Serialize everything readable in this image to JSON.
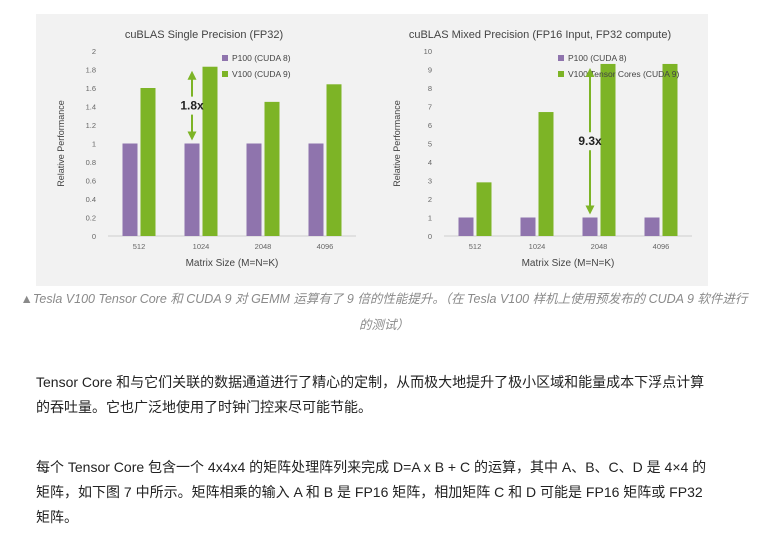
{
  "chart_data": [
    {
      "type": "bar",
      "title": "cuBLAS Single Precision (FP32)",
      "xlabel": "Matrix Size (M=N=K)",
      "ylabel": "Relative Performance",
      "categories": [
        "512",
        "1024",
        "2048",
        "4096"
      ],
      "series": [
        {
          "name": "P100 (CUDA 8)",
          "values": [
            1,
            1,
            1,
            1
          ],
          "color": "#8f74ad"
        },
        {
          "name": "V100 (CUDA 9)",
          "values": [
            1.6,
            1.83,
            1.45,
            1.64
          ],
          "color": "#7db426"
        }
      ],
      "ylim": [
        0,
        2
      ],
      "yticks": [
        "0",
        "0.2",
        "0.4",
        "0.6",
        "0.8",
        "1",
        "1.2",
        "1.4",
        "1.6",
        "1.8",
        "2"
      ],
      "grid": false,
      "legend": "top-left",
      "annotation": {
        "label": "1.8x",
        "category": "1024",
        "from": 1,
        "to": 1.83,
        "color": "#7db426"
      }
    },
    {
      "type": "bar",
      "title": "cuBLAS Mixed Precision (FP16 Input, FP32 compute)",
      "xlabel": "Matrix Size (M=N=K)",
      "ylabel": "Relative Performance",
      "categories": [
        "512",
        "1024",
        "2048",
        "4096"
      ],
      "series": [
        {
          "name": "P100 (CUDA 8)",
          "values": [
            1,
            1,
            1,
            1
          ],
          "color": "#8f74ad"
        },
        {
          "name": "V100 Tensor Cores  (CUDA 9)",
          "values": [
            2.9,
            6.7,
            9.3,
            9.3
          ],
          "color": "#7db426"
        }
      ],
      "ylim": [
        0,
        10
      ],
      "yticks": [
        "0",
        "1",
        "2",
        "3",
        "4",
        "5",
        "6",
        "7",
        "8",
        "9",
        "10"
      ],
      "grid": false,
      "legend": "top-left",
      "annotation": {
        "label": "9.3x",
        "category": "2048",
        "from": 1,
        "to": 9.3,
        "color": "#7db426"
      }
    }
  ],
  "caption": "▲Tesla V100 Tensor Core 和 CUDA 9 对 GEMM 运算有了 9 倍的性能提升。（在 Tesla V100 样机上使用预发布的 CUDA 9 软件进行的测试）",
  "paragraphs": [
    "Tensor Core 和与它们关联的数据通道进行了精心的定制，从而极大地提升了极小区域和能量成本下浮点计算的吞吐量。它也广泛地使用了时钟门控来尽可能节能。",
    "每个 Tensor Core 包含一个 4x4x4 的矩阵处理阵列来完成 D=A x B + C 的运算，其中 A、B、C、D 是 4×4 的矩阵，如下图 7 中所示。矩阵相乘的输入 A 和 B 是 FP16 矩阵，相加矩阵 C 和 D 可能是 FP16 矩阵或 FP32 矩阵。"
  ]
}
